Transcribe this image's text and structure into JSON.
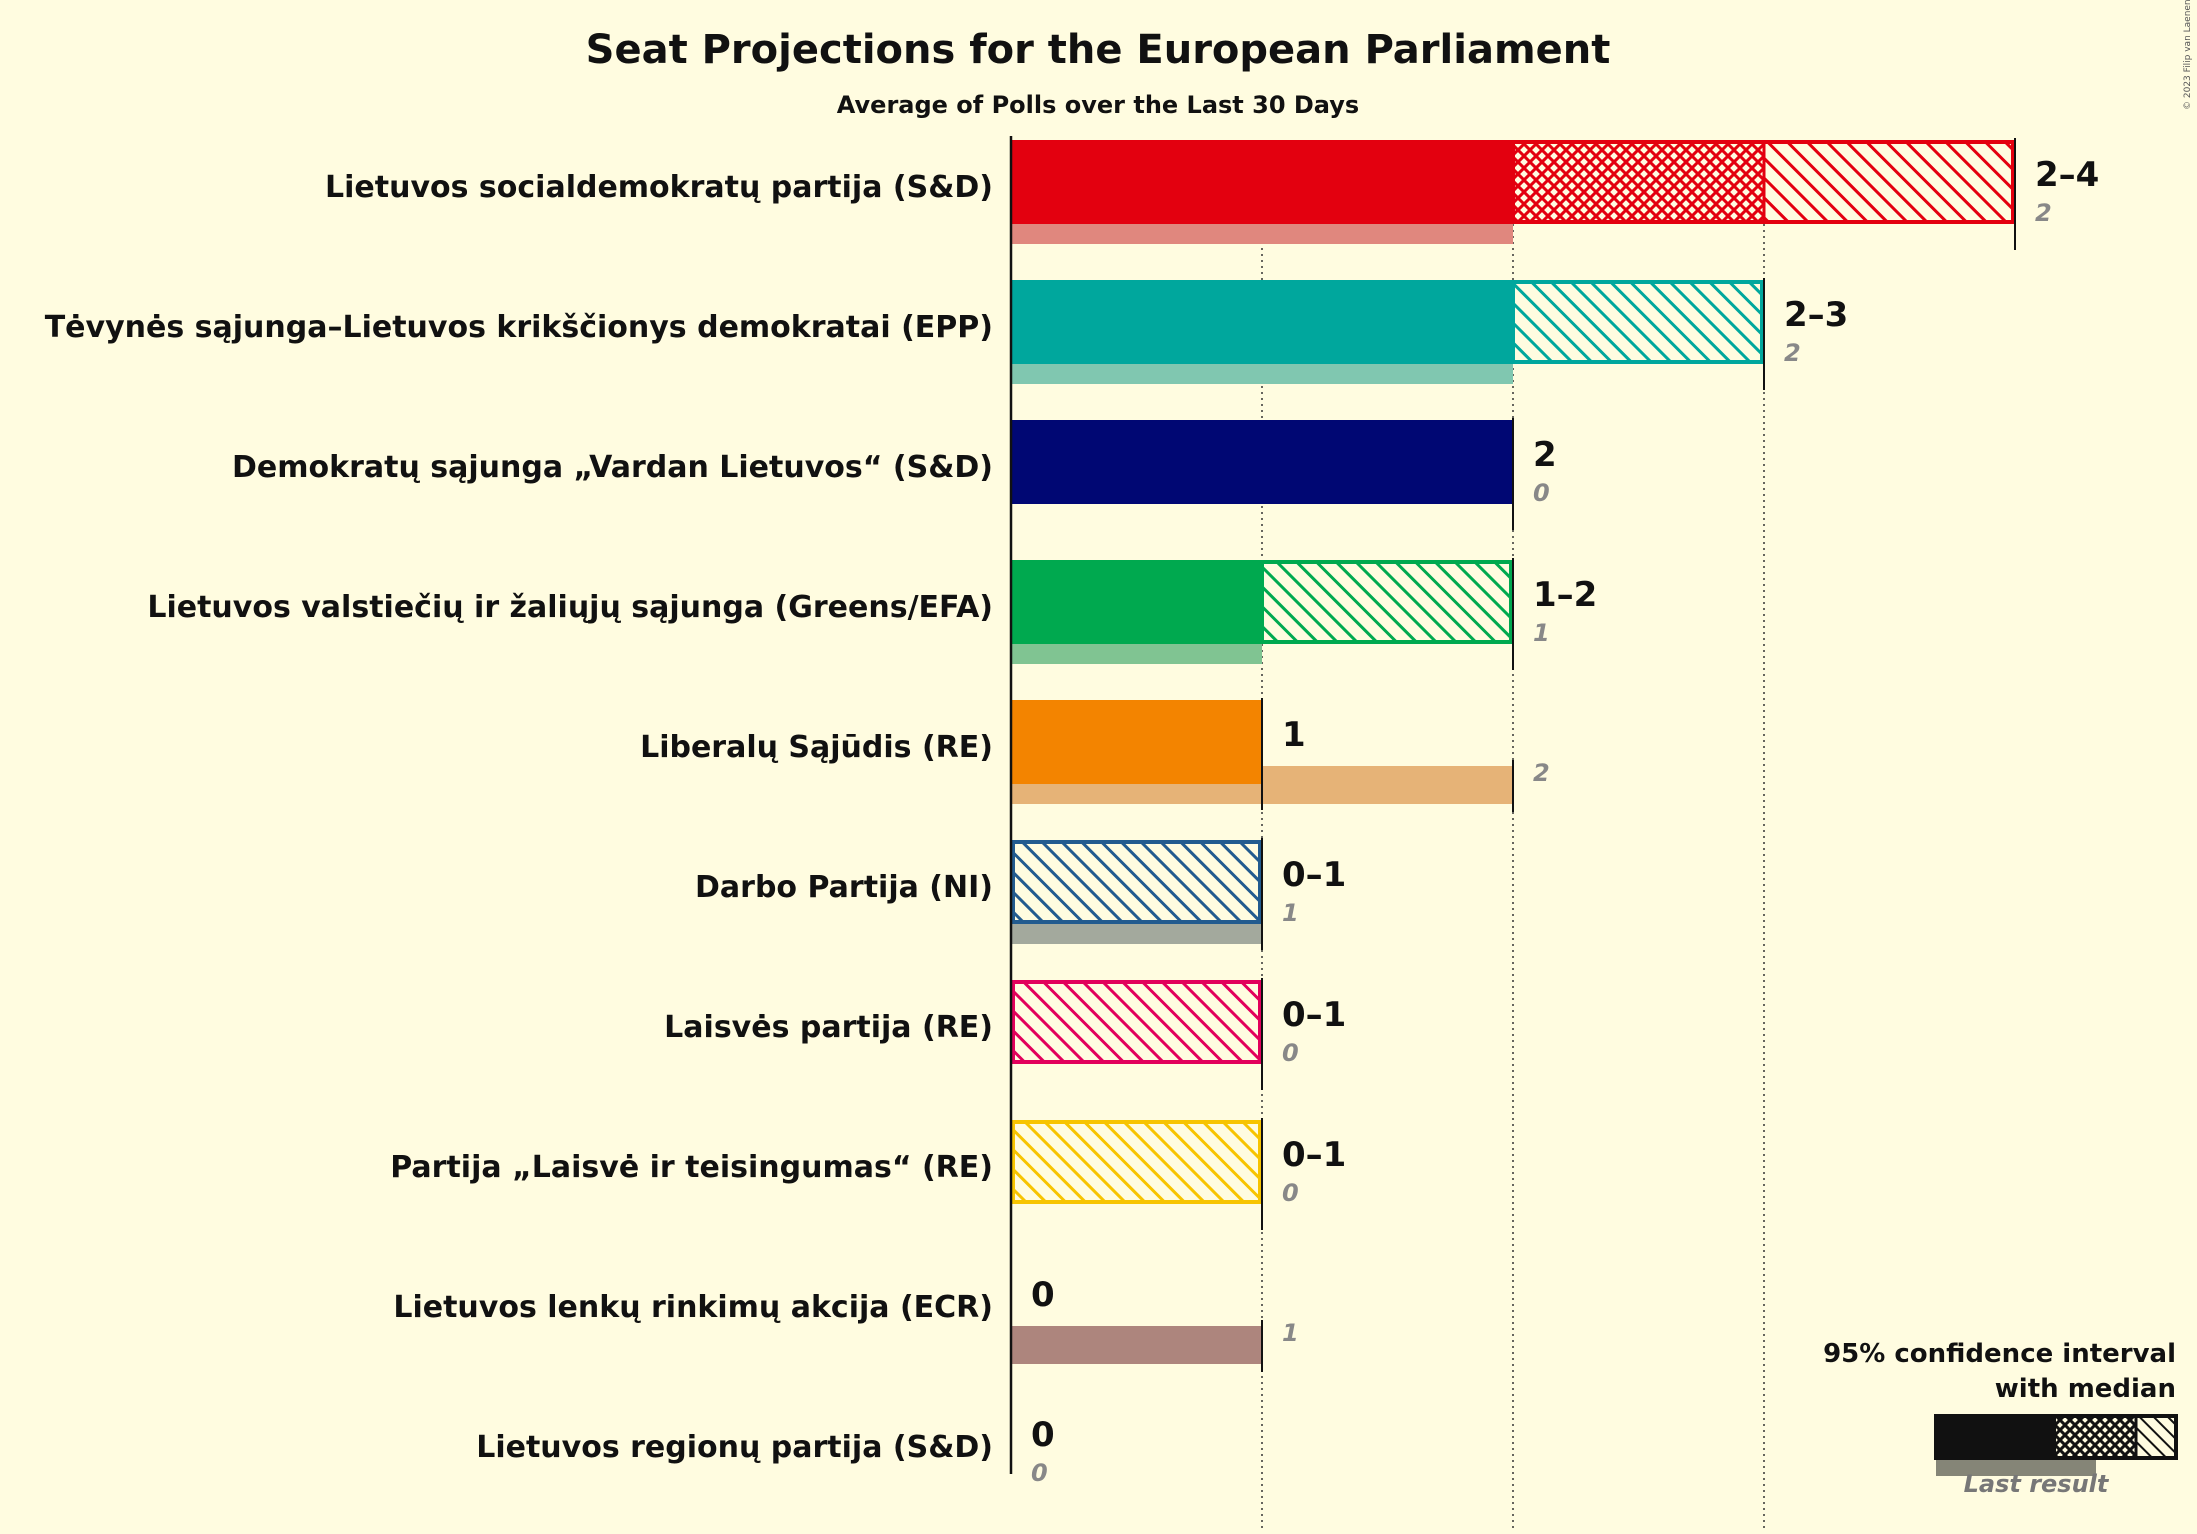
{
  "copyright": "© 2023 Filip van Laenen",
  "chart_data": {
    "type": "bar",
    "title": "Seat Projections for the European Parliament",
    "subtitle": "Average of Polls over the Last 30 Days",
    "xlim": [
      0,
      4
    ],
    "grid": true,
    "legend_position": "bottom-right",
    "series": [
      {
        "party": "Lietuvos socialdemokratų partija (S&D)",
        "low": 2,
        "median": 3,
        "high": 4,
        "range_label": "2–4",
        "last": 2,
        "last_label": "2",
        "color": "#E3000F",
        "last_color": "#E0877E"
      },
      {
        "party": "Tėvynės sąjunga–Lietuvos krikščionys demokratai (EPP)",
        "low": 2,
        "median": 2,
        "high": 3,
        "range_label": "2–3",
        "last": 2,
        "last_label": "2",
        "color": "#00A79D",
        "last_color": "#80C7B0"
      },
      {
        "party": "Demokratų sąjunga „Vardan Lietuvos“ (S&D)",
        "low": 2,
        "median": 2,
        "high": 2,
        "range_label": "2",
        "last": 0,
        "last_label": "0",
        "color": "#000773",
        "last_color": "#8083B9"
      },
      {
        "party": "Lietuvos valstiečių ir žaliųjų sąjunga (Greens/EFA)",
        "low": 1,
        "median": 1,
        "high": 2,
        "range_label": "1–2",
        "last": 1,
        "last_label": "1",
        "color": "#00A94F",
        "last_color": "#80C492"
      },
      {
        "party": "Liberalų Sąjūdis (RE)",
        "low": 1,
        "median": 1,
        "high": 1,
        "range_label": "1",
        "last": 2,
        "last_label": "2",
        "color": "#F38400",
        "last_color": "#E6B377"
      },
      {
        "party": "Darbo Partija (NI)",
        "low": 0,
        "median": 0,
        "high": 1,
        "range_label": "0–1",
        "last": 1,
        "last_label": "1",
        "color": "#225B8F",
        "last_color": "#A3A99D"
      },
      {
        "party": "Laisvės partija (RE)",
        "low": 0,
        "median": 0,
        "high": 1,
        "range_label": "0–1",
        "last": 0,
        "last_label": "0",
        "color": "#E2005B",
        "last_color": "#EE7FA8"
      },
      {
        "party": "Partija „Laisvė ir teisingumas“ (RE)",
        "low": 0,
        "median": 0,
        "high": 1,
        "range_label": "0–1",
        "last": 0,
        "last_label": "0",
        "color": "#F7C400",
        "last_color": "#F5DC75"
      },
      {
        "party": "Lietuvos lenkų rinkimų akcija (ECR)",
        "low": 0,
        "median": 0,
        "high": 0,
        "range_label": "0",
        "last": 1,
        "last_label": "1",
        "color": "#9E6E68",
        "last_color": "#AD857D"
      },
      {
        "party": "Lietuvos regionų partija (S&D)",
        "low": 0,
        "median": 0,
        "high": 0,
        "range_label": "0",
        "last": 0,
        "last_label": "0",
        "color": "#F08080",
        "last_color": "#E0A0A0"
      }
    ]
  },
  "legend": {
    "line1": "95% confidence interval",
    "line2": "with median",
    "last_result": "Last result"
  }
}
